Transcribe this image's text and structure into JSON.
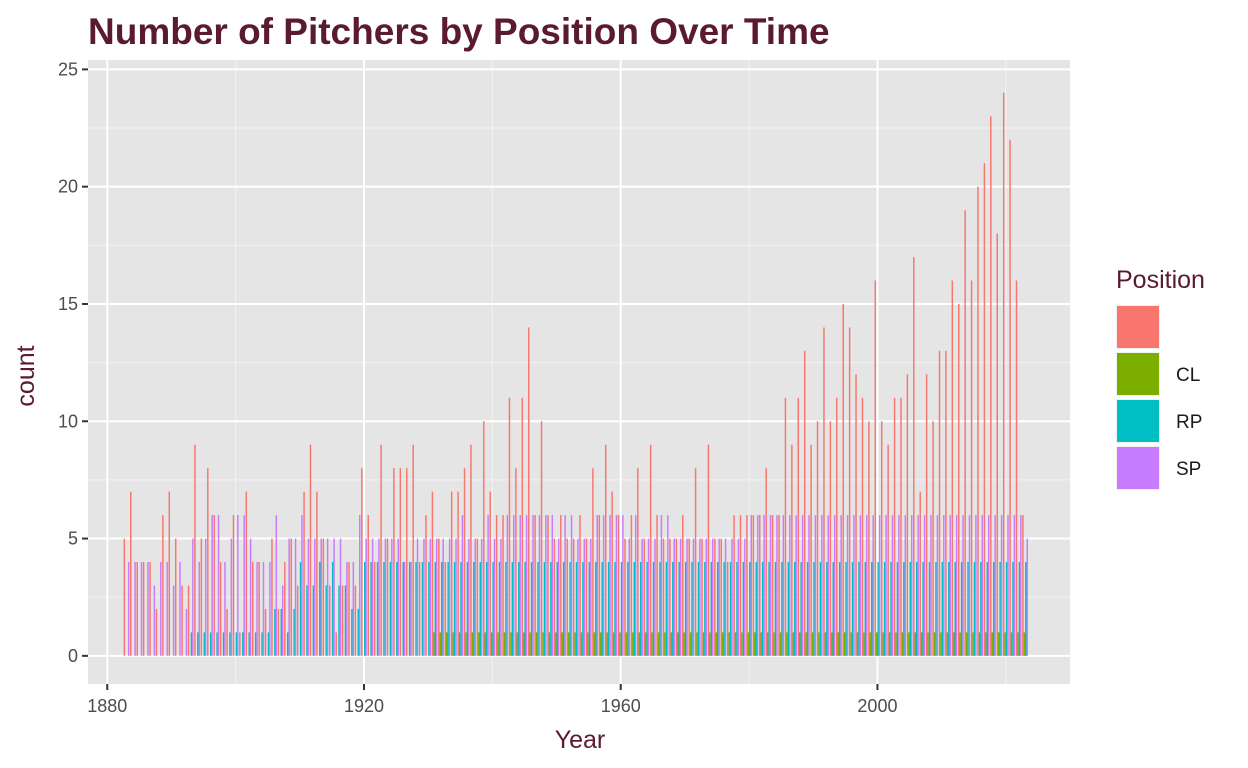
{
  "chart_data": {
    "type": "bar",
    "title": "Number of Pitchers by Position Over Time",
    "xlabel": "Year",
    "ylabel": "count",
    "xlim": [
      1877,
      2030
    ],
    "ylim": [
      -1.2,
      25.4
    ],
    "x_ticks": [
      1880,
      1920,
      1960,
      2000
    ],
    "y_ticks": [
      0,
      5,
      10,
      15,
      20,
      25
    ],
    "x_tick_labels": [
      "1880",
      "1920",
      "1960",
      "2000"
    ],
    "y_tick_labels": [
      "0",
      "5",
      "10",
      "15",
      "20",
      "25"
    ],
    "grid": true,
    "legend": {
      "title": "Position",
      "placement": "right",
      "entries": [
        "",
        "CL",
        "RP",
        "SP"
      ]
    },
    "series": [
      {
        "name": "",
        "color": "#F8766D",
        "years": [
          1883,
          1884,
          1885,
          1886,
          1887,
          1888,
          1889,
          1890,
          1891,
          1892,
          1893,
          1894,
          1895,
          1896,
          1897,
          1898,
          1899,
          1900,
          1901,
          1902,
          1903,
          1904,
          1905,
          1906,
          1907,
          1908,
          1909,
          1910,
          1911,
          1912,
          1913,
          1914,
          1915,
          1916,
          1917,
          1918,
          1919,
          1920,
          1921,
          1922,
          1923,
          1924,
          1925,
          1926,
          1927,
          1928,
          1929,
          1930,
          1931,
          1932,
          1933,
          1934,
          1935,
          1936,
          1937,
          1938,
          1939,
          1940,
          1941,
          1942,
          1943,
          1944,
          1945,
          1946,
          1947,
          1948,
          1949,
          1950,
          1951,
          1952,
          1953,
          1954,
          1955,
          1956,
          1957,
          1958,
          1959,
          1960,
          1961,
          1962,
          1963,
          1964,
          1965,
          1966,
          1967,
          1968,
          1969,
          1970,
          1971,
          1972,
          1973,
          1974,
          1975,
          1976,
          1977,
          1978,
          1979,
          1980,
          1981,
          1982,
          1983,
          1984,
          1985,
          1986,
          1987,
          1988,
          1989,
          1990,
          1991,
          1992,
          1993,
          1994,
          1995,
          1996,
          1997,
          1998,
          1999,
          2000,
          2001,
          2002,
          2003,
          2004,
          2005,
          2006,
          2007,
          2008,
          2009,
          2010,
          2011,
          2012,
          2013,
          2014,
          2015,
          2016,
          2017,
          2018,
          2019,
          2020,
          2021,
          2022,
          2023
        ],
        "values": [
          5,
          7,
          4,
          4,
          4,
          2,
          6,
          7,
          5,
          3,
          3,
          9,
          5,
          8,
          6,
          4,
          2,
          6,
          1,
          7,
          4,
          4,
          2,
          5,
          2,
          4,
          5,
          3,
          7,
          9,
          7,
          5,
          3,
          1,
          3,
          4,
          3,
          8,
          6,
          4,
          9,
          5,
          8,
          8,
          8,
          9,
          4,
          6,
          7,
          5,
          4,
          7,
          7,
          8,
          9,
          5,
          10,
          7,
          6,
          6,
          11,
          8,
          11,
          14,
          6,
          10,
          6,
          5,
          6,
          5,
          5,
          6,
          5,
          8,
          6,
          9,
          7,
          6,
          5,
          6,
          8,
          5,
          9,
          6,
          5,
          5,
          5,
          6,
          5,
          8,
          5,
          9,
          5,
          5,
          4,
          6,
          6,
          6,
          6,
          6,
          8,
          6,
          6,
          11,
          9,
          11,
          13,
          9,
          10,
          14,
          10,
          11,
          15,
          14,
          12,
          11,
          10,
          16,
          10,
          9,
          11,
          11,
          12,
          17,
          7,
          12,
          10,
          13,
          13,
          16,
          15,
          19,
          16,
          20,
          21,
          23,
          18,
          24,
          22,
          16,
          6
        ]
      },
      {
        "name": "CL",
        "color": "#7CAE00",
        "years": [
          1931,
          1932,
          1933,
          1934,
          1935,
          1936,
          1937,
          1938,
          1939,
          1940,
          1941,
          1942,
          1943,
          1944,
          1945,
          1946,
          1947,
          1948,
          1949,
          1950,
          1951,
          1952,
          1953,
          1954,
          1955,
          1956,
          1957,
          1958,
          1959,
          1960,
          1961,
          1962,
          1963,
          1964,
          1965,
          1966,
          1967,
          1968,
          1969,
          1970,
          1971,
          1972,
          1973,
          1974,
          1975,
          1976,
          1977,
          1978,
          1979,
          1980,
          1981,
          1982,
          1983,
          1984,
          1985,
          1986,
          1987,
          1988,
          1989,
          1990,
          1991,
          1992,
          1993,
          1994,
          1995,
          1996,
          1997,
          1998,
          1999,
          2000,
          2001,
          2002,
          2003,
          2004,
          2005,
          2006,
          2007,
          2008,
          2009,
          2010,
          2011,
          2012,
          2013,
          2014,
          2015,
          2016,
          2017,
          2018,
          2019,
          2020,
          2021,
          2022,
          2023
        ],
        "values": [
          1,
          1,
          1,
          1,
          1,
          1,
          1,
          1,
          1,
          1,
          1,
          1,
          1,
          1,
          1,
          1,
          1,
          1,
          1,
          1,
          1,
          1,
          1,
          1,
          1,
          1,
          1,
          1,
          1,
          1,
          1,
          1,
          1,
          1,
          1,
          1,
          1,
          1,
          1,
          1,
          1,
          1,
          1,
          1,
          1,
          1,
          1,
          1,
          1,
          1,
          1,
          1,
          1,
          1,
          1,
          1,
          1,
          1,
          1,
          1,
          1,
          1,
          1,
          1,
          1,
          1,
          1,
          1,
          1,
          1,
          1,
          1,
          1,
          1,
          1,
          1,
          1,
          1,
          1,
          1,
          1,
          1,
          1,
          1,
          1,
          1,
          1,
          1,
          1,
          1,
          1,
          1,
          1
        ]
      },
      {
        "name": "RP",
        "color": "#00BFC4",
        "years": [
          1893,
          1894,
          1895,
          1896,
          1897,
          1898,
          1899,
          1900,
          1901,
          1902,
          1903,
          1904,
          1905,
          1906,
          1907,
          1908,
          1909,
          1910,
          1911,
          1912,
          1913,
          1914,
          1915,
          1916,
          1917,
          1918,
          1919,
          1920,
          1921,
          1922,
          1923,
          1924,
          1925,
          1926,
          1927,
          1928,
          1929,
          1930,
          1931,
          1932,
          1933,
          1934,
          1935,
          1936,
          1937,
          1938,
          1939,
          1940,
          1941,
          1942,
          1943,
          1944,
          1945,
          1946,
          1947,
          1948,
          1949,
          1950,
          1951,
          1952,
          1953,
          1954,
          1955,
          1956,
          1957,
          1958,
          1959,
          1960,
          1961,
          1962,
          1963,
          1964,
          1965,
          1966,
          1967,
          1968,
          1969,
          1970,
          1971,
          1972,
          1973,
          1974,
          1975,
          1976,
          1977,
          1978,
          1979,
          1980,
          1981,
          1982,
          1983,
          1984,
          1985,
          1986,
          1987,
          1988,
          1989,
          1990,
          1991,
          1992,
          1993,
          1994,
          1995,
          1996,
          1997,
          1998,
          1999,
          2000,
          2001,
          2002,
          2003,
          2004,
          2005,
          2006,
          2007,
          2008,
          2009,
          2010,
          2011,
          2012,
          2013,
          2014,
          2015,
          2016,
          2017,
          2018,
          2019,
          2020,
          2021,
          2022,
          2023
        ],
        "values": [
          1,
          1,
          1,
          1,
          1,
          1,
          1,
          1,
          1,
          1,
          1,
          1,
          1,
          2,
          2,
          1,
          2,
          4,
          3,
          3,
          4,
          3,
          4,
          3,
          3,
          2,
          2,
          4,
          4,
          4,
          4,
          4,
          4,
          4,
          4,
          4,
          4,
          4,
          4,
          4,
          4,
          4,
          4,
          4,
          4,
          4,
          4,
          4,
          4,
          4,
          4,
          4,
          4,
          4,
          4,
          4,
          4,
          4,
          4,
          4,
          4,
          4,
          4,
          4,
          4,
          4,
          4,
          4,
          4,
          4,
          4,
          4,
          4,
          4,
          4,
          4,
          4,
          4,
          4,
          4,
          4,
          4,
          4,
          4,
          4,
          4,
          4,
          4,
          4,
          4,
          4,
          4,
          4,
          4,
          4,
          4,
          4,
          4,
          4,
          4,
          4,
          4,
          4,
          4,
          4,
          4,
          4,
          4,
          4,
          4,
          4,
          4,
          4,
          4,
          4,
          4,
          4,
          4,
          4,
          4,
          4,
          4,
          4,
          4,
          4,
          4,
          4,
          4,
          4,
          4,
          4
        ]
      },
      {
        "name": "SP",
        "color": "#C77CFF",
        "years": [
          1883,
          1884,
          1885,
          1886,
          1887,
          1888,
          1889,
          1890,
          1891,
          1892,
          1893,
          1894,
          1895,
          1896,
          1897,
          1898,
          1899,
          1900,
          1901,
          1902,
          1903,
          1904,
          1905,
          1906,
          1907,
          1908,
          1909,
          1910,
          1911,
          1912,
          1913,
          1914,
          1915,
          1916,
          1917,
          1918,
          1919,
          1920,
          1921,
          1922,
          1923,
          1924,
          1925,
          1926,
          1927,
          1928,
          1929,
          1930,
          1931,
          1932,
          1933,
          1934,
          1935,
          1936,
          1937,
          1938,
          1939,
          1940,
          1941,
          1942,
          1943,
          1944,
          1945,
          1946,
          1947,
          1948,
          1949,
          1950,
          1951,
          1952,
          1953,
          1954,
          1955,
          1956,
          1957,
          1958,
          1959,
          1960,
          1961,
          1962,
          1963,
          1964,
          1965,
          1966,
          1967,
          1968,
          1969,
          1970,
          1971,
          1972,
          1973,
          1974,
          1975,
          1976,
          1977,
          1978,
          1979,
          1980,
          1981,
          1982,
          1983,
          1984,
          1985,
          1986,
          1987,
          1988,
          1989,
          1990,
          1991,
          1992,
          1993,
          1994,
          1995,
          1996,
          1997,
          1998,
          1999,
          2000,
          2001,
          2002,
          2003,
          2004,
          2005,
          2006,
          2007,
          2008,
          2009,
          2010,
          2011,
          2012,
          2013,
          2014,
          2015,
          2016,
          2017,
          2018,
          2019,
          2020,
          2021,
          2022,
          2023
        ],
        "values": [
          4,
          4,
          4,
          4,
          3,
          4,
          4,
          3,
          4,
          2,
          5,
          4,
          5,
          6,
          6,
          4,
          5,
          6,
          6,
          5,
          4,
          4,
          4,
          6,
          3,
          5,
          5,
          6,
          5,
          5,
          5,
          5,
          5,
          5,
          4,
          4,
          6,
          5,
          5,
          5,
          5,
          5,
          5,
          4,
          4,
          5,
          5,
          5,
          5,
          5,
          5,
          5,
          6,
          5,
          5,
          5,
          6,
          5,
          5,
          6,
          6,
          6,
          6,
          6,
          6,
          6,
          6,
          5,
          6,
          6,
          5,
          5,
          5,
          6,
          6,
          6,
          6,
          6,
          5,
          6,
          5,
          5,
          5,
          6,
          6,
          5,
          5,
          5,
          5,
          5,
          5,
          5,
          5,
          5,
          5,
          5,
          5,
          6,
          6,
          6,
          6,
          6,
          6,
          6,
          6,
          6,
          6,
          6,
          6,
          6,
          6,
          6,
          6,
          6,
          6,
          6,
          6,
          6,
          6,
          6,
          6,
          6,
          6,
          6,
          6,
          6,
          6,
          6,
          6,
          6,
          6,
          6,
          6,
          6,
          6,
          6,
          6,
          6,
          6,
          6,
          5
        ]
      }
    ]
  }
}
